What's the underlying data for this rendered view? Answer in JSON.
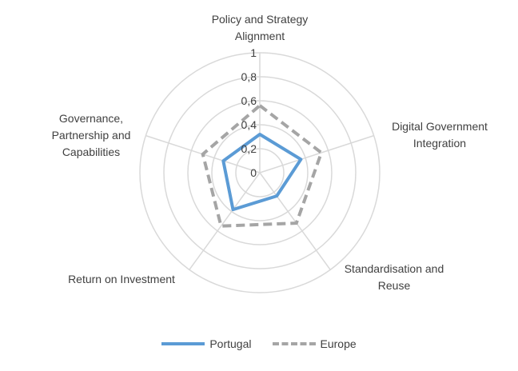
{
  "chart_data": {
    "type": "radar",
    "axes": [
      [
        "Policy and Strategy",
        "Alignment"
      ],
      [
        "Digital Government",
        "Integration"
      ],
      [
        "Standardisation and",
        "Reuse"
      ],
      [
        "Return on Investment"
      ],
      [
        "Governance,",
        "Partnership and",
        "Capabilities"
      ]
    ],
    "rlim": [
      0,
      1
    ],
    "ticks": [
      "0",
      "0,2",
      "0,4",
      "0,6",
      "0,8",
      "1"
    ],
    "tick_values": [
      0,
      0.2,
      0.4,
      0.6,
      0.8,
      1
    ],
    "grid": true,
    "legend_position": "bottom",
    "series": [
      {
        "name": "Portugal",
        "values": [
          0.32,
          0.36,
          0.24,
          0.38,
          0.32
        ],
        "color": "#5b9bd5",
        "style": "solid"
      },
      {
        "name": "Europe",
        "values": [
          0.56,
          0.54,
          0.52,
          0.55,
          0.5
        ],
        "color": "#a5a5a5",
        "style": "dashed"
      }
    ]
  }
}
